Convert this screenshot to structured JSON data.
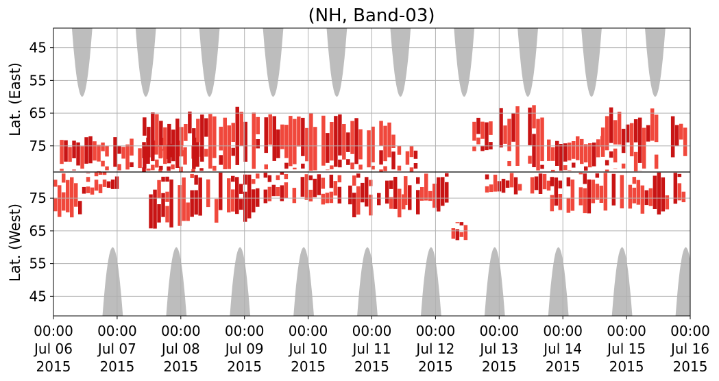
{
  "chart_data": {
    "type": "heatmap",
    "title": "(NH, Band-03)",
    "ylabel_top": "Lat. (East)",
    "ylabel_bottom": "Lat. (West)",
    "x_ticks": [
      {
        "time": "00:00",
        "date": "Jul 06",
        "year": "2015"
      },
      {
        "time": "00:00",
        "date": "Jul 07",
        "year": "2015"
      },
      {
        "time": "00:00",
        "date": "Jul 08",
        "year": "2015"
      },
      {
        "time": "00:00",
        "date": "Jul 09",
        "year": "2015"
      },
      {
        "time": "00:00",
        "date": "Jul 10",
        "year": "2015"
      },
      {
        "time": "00:00",
        "date": "Jul 11",
        "year": "2015"
      },
      {
        "time": "00:00",
        "date": "Jul 12",
        "year": "2015"
      },
      {
        "time": "00:00",
        "date": "Jul 13",
        "year": "2015"
      },
      {
        "time": "00:00",
        "date": "Jul 14",
        "year": "2015"
      },
      {
        "time": "00:00",
        "date": "Jul 15",
        "year": "2015"
      },
      {
        "time": "00:00",
        "date": "Jul 16",
        "year": "2015"
      }
    ],
    "y_ticks_top": [
      "45",
      "55",
      "65",
      "75"
    ],
    "y_ticks_bottom": [
      "75",
      "65",
      "55",
      "45"
    ],
    "x_range": [
      "2015-07-06 00:00",
      "2015-07-16 00:00"
    ],
    "lat_range_each_hemisphere": [
      39,
      83
    ],
    "grid": true,
    "colors": {
      "occurrence_dark": "#c81414",
      "occurrence_light": "#f0483c",
      "no_data_shading": "#bdbdbd",
      "grid": "#b0b0b0",
      "divider": "#000000"
    },
    "no_data_shading_east_day_centers": [
      6.45,
      7.45,
      8.45,
      9.45,
      10.45,
      11.45,
      12.45,
      13.45,
      14.45,
      15.45
    ],
    "no_data_shading_west_day_centers": [
      6.93,
      7.93,
      8.93,
      9.93,
      10.93,
      11.93,
      12.93,
      13.93,
      14.93,
      15.93
    ],
    "no_data_shading_reach_lat": 60,
    "occurrence_bands": [
      {
        "hemisphere": "east",
        "day_start": 6.1,
        "day_end": 8.4,
        "lat_min": 72,
        "lat_max": 83
      },
      {
        "hemisphere": "east",
        "day_start": 7.4,
        "day_end": 8.6,
        "lat_min": 64,
        "lat_max": 83
      },
      {
        "hemisphere": "east",
        "day_start": 8.6,
        "day_end": 9.5,
        "lat_min": 63,
        "lat_max": 83
      },
      {
        "hemisphere": "east",
        "day_start": 9.5,
        "day_end": 10.6,
        "lat_min": 65,
        "lat_max": 83
      },
      {
        "hemisphere": "east",
        "day_start": 10.6,
        "day_end": 11.4,
        "lat_min": 66,
        "lat_max": 83
      },
      {
        "hemisphere": "east",
        "day_start": 11.4,
        "day_end": 11.85,
        "lat_min": 75,
        "lat_max": 83
      },
      {
        "hemisphere": "east",
        "day_start": 12.45,
        "day_end": 12.9,
        "lat_min": 66,
        "lat_max": 77
      },
      {
        "hemisphere": "east",
        "day_start": 13.0,
        "day_end": 13.75,
        "lat_min": 62,
        "lat_max": 83
      },
      {
        "hemisphere": "east",
        "day_start": 13.75,
        "day_end": 14.6,
        "lat_min": 72,
        "lat_max": 83
      },
      {
        "hemisphere": "east",
        "day_start": 14.6,
        "day_end": 16.0,
        "lat_min": 63,
        "lat_max": 83
      },
      {
        "hemisphere": "west",
        "day_start": 6.0,
        "day_end": 6.45,
        "lat_min": 68,
        "lat_max": 83
      },
      {
        "hemisphere": "west",
        "day_start": 6.45,
        "day_end": 7.0,
        "lat_min": 76,
        "lat_max": 83
      },
      {
        "hemisphere": "west",
        "day_start": 7.5,
        "day_end": 8.4,
        "lat_min": 65,
        "lat_max": 83
      },
      {
        "hemisphere": "west",
        "day_start": 8.4,
        "day_end": 9.3,
        "lat_min": 67,
        "lat_max": 83
      },
      {
        "hemisphere": "west",
        "day_start": 9.3,
        "day_end": 10.5,
        "lat_min": 73,
        "lat_max": 83
      },
      {
        "hemisphere": "west",
        "day_start": 10.5,
        "day_end": 11.5,
        "lat_min": 69,
        "lat_max": 83
      },
      {
        "hemisphere": "west",
        "day_start": 11.5,
        "day_end": 12.2,
        "lat_min": 70,
        "lat_max": 83
      },
      {
        "hemisphere": "west",
        "day_start": 12.25,
        "day_end": 12.45,
        "lat_min": 61,
        "lat_max": 68
      },
      {
        "hemisphere": "west",
        "day_start": 12.65,
        "day_end": 13.8,
        "lat_min": 76,
        "lat_max": 83
      },
      {
        "hemisphere": "west",
        "day_start": 13.8,
        "day_end": 16.0,
        "lat_min": 70,
        "lat_max": 83
      }
    ]
  }
}
